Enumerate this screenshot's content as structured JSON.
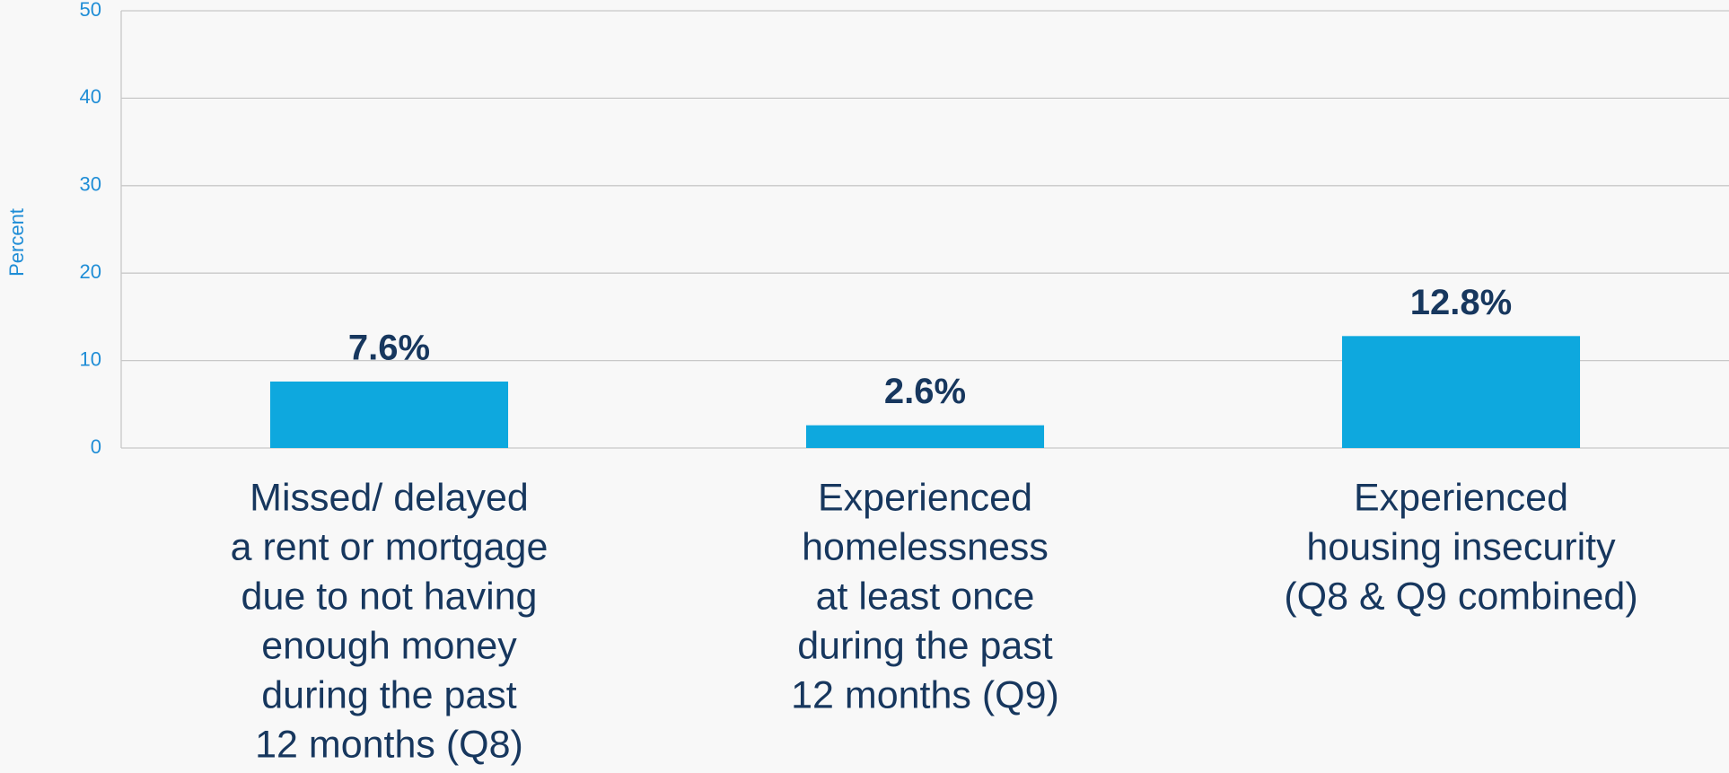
{
  "chart_data": {
    "type": "bar",
    "y_label": "Percent",
    "categories": [
      [
        "Missed/ delayed",
        "a rent or mortgage",
        "due to not having",
        "enough money",
        "during the past",
        "12 months (Q8)"
      ],
      [
        "Experienced",
        "homelessness",
        "at least once",
        "during the past",
        "12 months (Q9)"
      ],
      [
        "Experienced",
        "housing insecurity",
        "(Q8 & Q9 combined)"
      ]
    ],
    "values": [
      7.6,
      2.6,
      12.8
    ],
    "value_labels": [
      "7.6%",
      "2.6%",
      "12.8%"
    ],
    "color": "#0ea8de",
    "ylim": [
      0,
      50
    ],
    "yticks": [
      0,
      10,
      20,
      30,
      40,
      50
    ],
    "grid": true
  }
}
